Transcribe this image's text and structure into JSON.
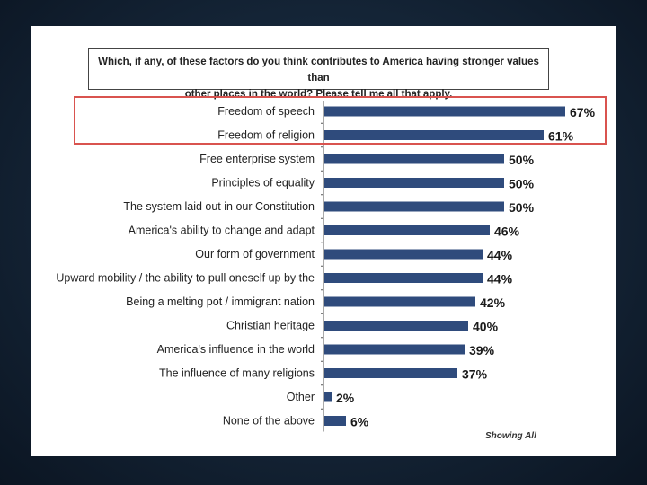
{
  "question": {
    "line1": "Which, if any, of these factors do you think contributes to America having stronger values than",
    "line2": "other places in the world?  Please tell me all that apply."
  },
  "footnote": "Showing All",
  "colors": {
    "bar": "#2f4b7c",
    "highlight": "#d9534f"
  },
  "chart_data": {
    "type": "bar",
    "orientation": "horizontal",
    "categories": [
      "Freedom of speech",
      "Freedom of religion",
      "Free enterprise system",
      "Principles of equality",
      "The system laid out in our Constitution",
      "America's ability to change and adapt",
      "Our form of government",
      "Upward mobility / the ability to pull oneself up by the",
      "Being a melting pot / immigrant nation",
      "Christian heritage",
      "America's influence in the world",
      "The influence of many religions",
      "Other",
      "None of the above"
    ],
    "values": [
      67,
      61,
      50,
      50,
      50,
      46,
      44,
      44,
      42,
      40,
      39,
      37,
      2,
      6
    ],
    "value_labels": [
      "67%",
      "61%",
      "50%",
      "50%",
      "50%",
      "46%",
      "44%",
      "44%",
      "42%",
      "40%",
      "39%",
      "37%",
      "2%",
      "6%"
    ],
    "highlighted_categories": [
      "Freedom of speech",
      "Freedom of religion"
    ],
    "xlim": [
      0,
      100
    ],
    "grid": false,
    "legend": "none"
  }
}
